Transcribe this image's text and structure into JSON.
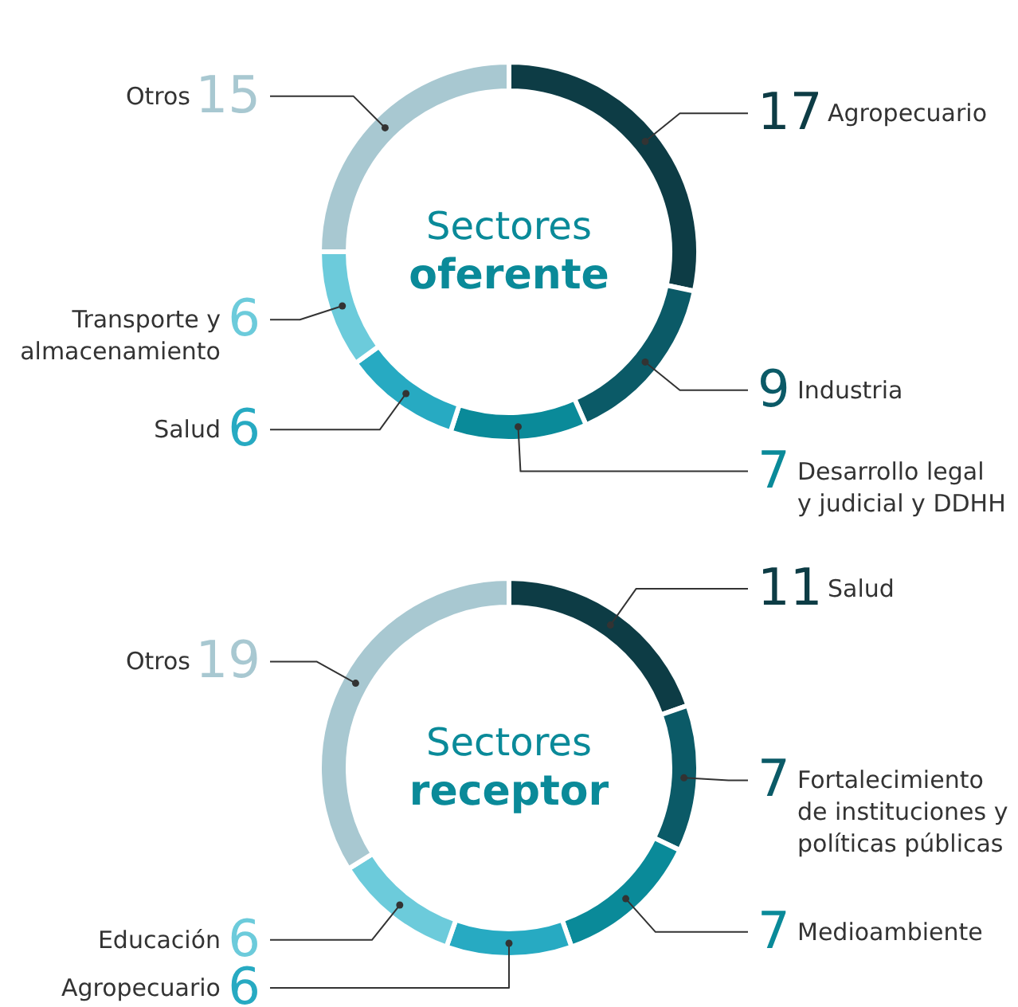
{
  "chart_data": [
    {
      "type": "donut",
      "title": "Sectores",
      "subtitle": "oferente",
      "data_labels": true,
      "categories": [
        "Agropecuario",
        "Industria",
        "Desarrollo legal\ny judicial y DDHH",
        "Salud",
        "Transporte y\nalmacenamiento",
        "Otros"
      ],
      "values": [
        17,
        9,
        7,
        6,
        6,
        15
      ],
      "colors": [
        "#0d3c45",
        "#0b5a67",
        "#0a8a99",
        "#27aac2",
        "#6ccbdb",
        "#a8c8d1"
      ]
    },
    {
      "type": "donut",
      "title": "Sectores",
      "subtitle": "receptor",
      "data_labels": true,
      "categories": [
        "Salud",
        "Fortalecimiento\nde instituciones y\npolíticas públicas",
        "Medioambiente",
        "Agropecuario",
        "Educación",
        "Otros"
      ],
      "values": [
        11,
        7,
        7,
        6,
        6,
        19
      ],
      "colors": [
        "#0d3c45",
        "#0b5a67",
        "#0a8a99",
        "#27aac2",
        "#6ccbdb",
        "#a8c8d1"
      ]
    }
  ]
}
